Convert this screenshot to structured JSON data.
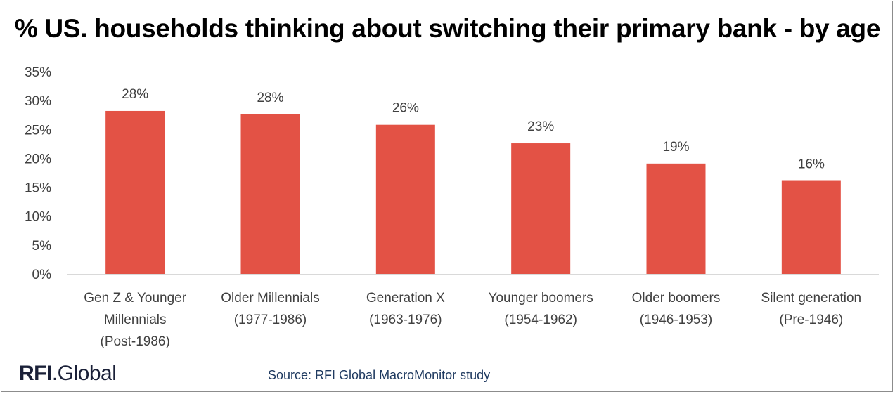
{
  "title": "% US. households thinking about switching their primary bank - by age",
  "source": "Source: RFI Global MacroMonitor study",
  "logo": {
    "part1": "RFI",
    "part2": ".Global"
  },
  "colors": {
    "bar": "#e35245",
    "axis": "#d9d9d9",
    "text": "#404040"
  },
  "chart_data": {
    "type": "bar",
    "categories": [
      [
        "Gen Z & Younger",
        "Millennials",
        "(Post-1986)"
      ],
      [
        "Older Millennials",
        "(1977-1986)"
      ],
      [
        "Generation X",
        "(1963-1976)"
      ],
      [
        "Younger boomers",
        "(1954-1962)"
      ],
      [
        "Older boomers",
        "(1946-1953)"
      ],
      [
        "Silent generation",
        "(Pre-1946)"
      ]
    ],
    "values": [
      28.2,
      27.6,
      25.8,
      22.6,
      19.1,
      16.1
    ],
    "data_labels": [
      "28%",
      "28%",
      "26%",
      "23%",
      "19%",
      "16%"
    ],
    "y_ticks": [
      "0%",
      "5%",
      "10%",
      "15%",
      "20%",
      "25%",
      "30%",
      "35%"
    ],
    "ylim": [
      0,
      35
    ],
    "grid": false,
    "legend": "none"
  }
}
